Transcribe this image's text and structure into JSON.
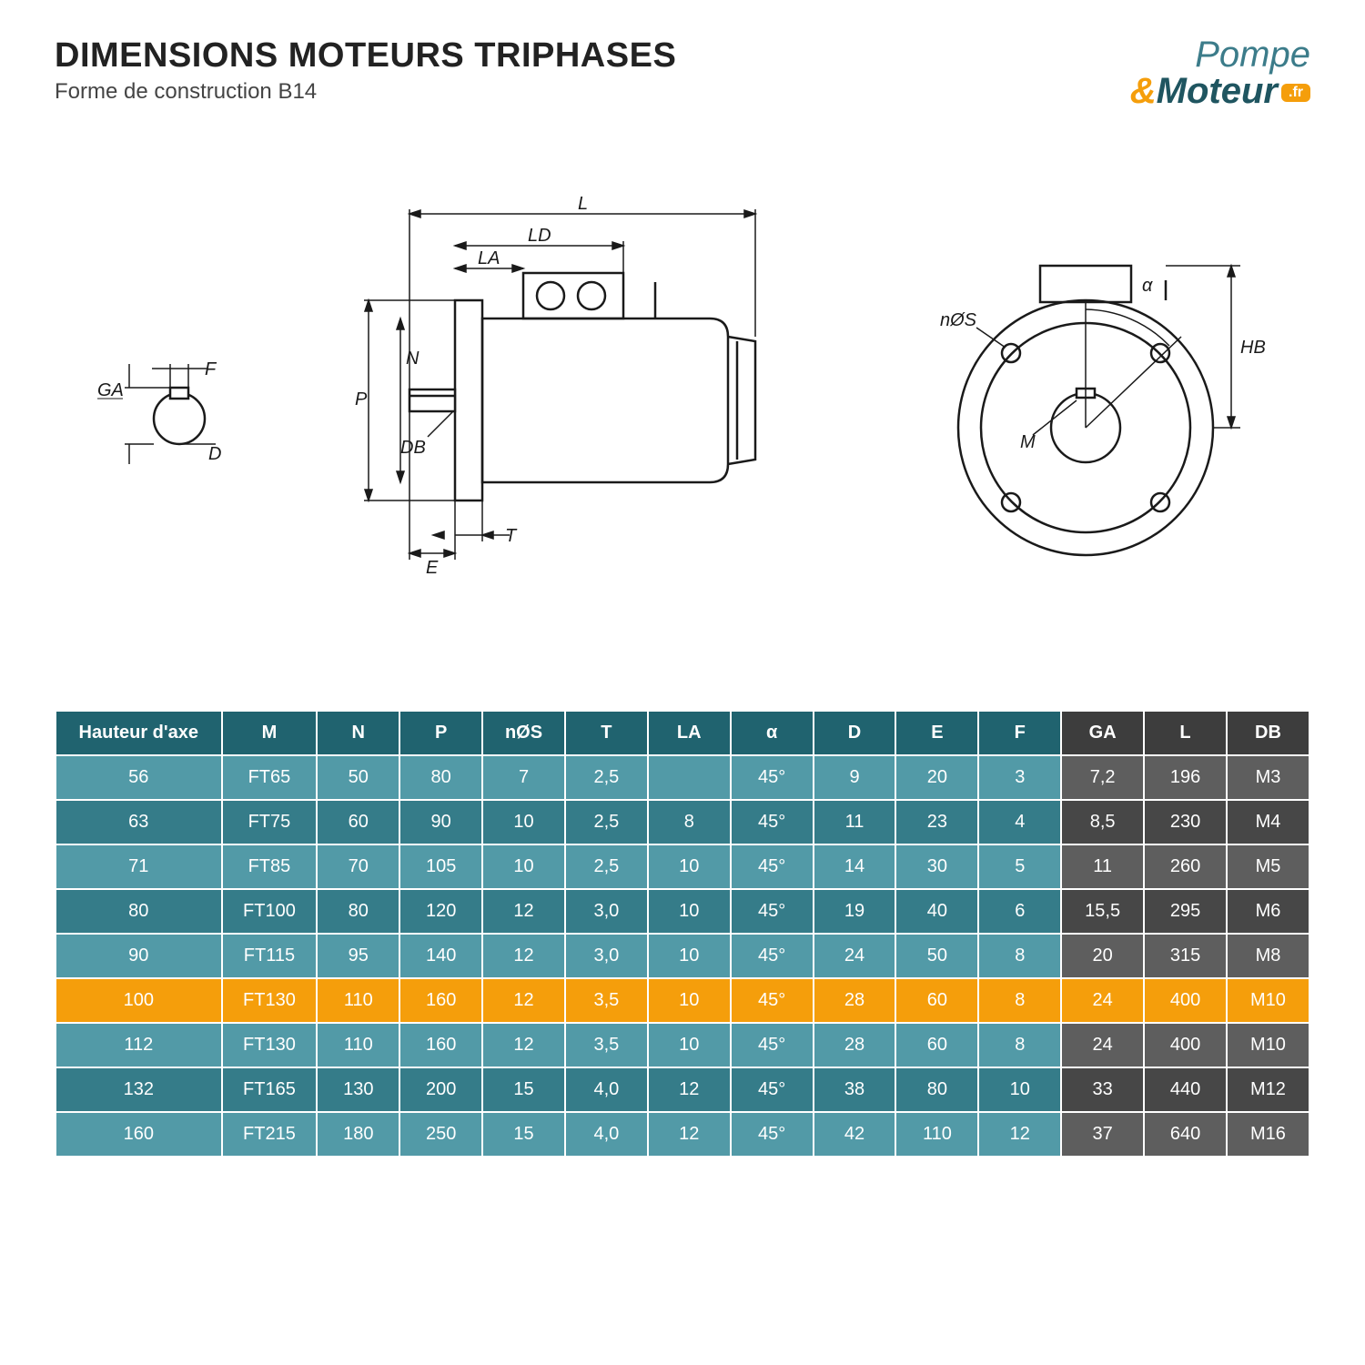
{
  "header": {
    "title": "DIMENSIONS MOTEURS TRIPHASES",
    "subtitle": "Forme de construction B14",
    "logo_line1": "Pompe",
    "logo_amp": "&",
    "logo_line2": "Moteur",
    "logo_badge": ".fr"
  },
  "diagram_labels": {
    "shaft": {
      "GA": "GA",
      "F": "F",
      "D": "D"
    },
    "side": {
      "L": "L",
      "LD": "LD",
      "LA": "LA",
      "P": "P",
      "N": "N",
      "DB": "DB",
      "E": "E",
      "T": "T"
    },
    "front": {
      "alpha": "α",
      "nS": "nØS",
      "M": "M",
      "HB": "HB"
    }
  },
  "table": {
    "columns": [
      {
        "key": "haut",
        "label": "Hauteur d'axe",
        "group": "teal"
      },
      {
        "key": "M",
        "label": "M",
        "group": "teal"
      },
      {
        "key": "N",
        "label": "N",
        "group": "teal"
      },
      {
        "key": "P",
        "label": "P",
        "group": "teal"
      },
      {
        "key": "nS",
        "label": "nØS",
        "group": "teal"
      },
      {
        "key": "T",
        "label": "T",
        "group": "teal"
      },
      {
        "key": "LA",
        "label": "LA",
        "group": "teal"
      },
      {
        "key": "alpha",
        "label": "α",
        "group": "teal"
      },
      {
        "key": "D",
        "label": "D",
        "group": "teal"
      },
      {
        "key": "E",
        "label": "E",
        "group": "teal"
      },
      {
        "key": "F",
        "label": "F",
        "group": "teal"
      },
      {
        "key": "GA",
        "label": "GA",
        "group": "dark"
      },
      {
        "key": "L",
        "label": "L",
        "group": "dark"
      },
      {
        "key": "DB",
        "label": "DB",
        "group": "dark"
      }
    ],
    "highlight_index": 5,
    "rows": [
      [
        "56",
        "FT65",
        "50",
        "80",
        "7",
        "2,5",
        "",
        "45°",
        "9",
        "20",
        "3",
        "7,2",
        "196",
        "M3"
      ],
      [
        "63",
        "FT75",
        "60",
        "90",
        "10",
        "2,5",
        "8",
        "45°",
        "11",
        "23",
        "4",
        "8,5",
        "230",
        "M4"
      ],
      [
        "71",
        "FT85",
        "70",
        "105",
        "10",
        "2,5",
        "10",
        "45°",
        "14",
        "30",
        "5",
        "11",
        "260",
        "M5"
      ],
      [
        "80",
        "FT100",
        "80",
        "120",
        "12",
        "3,0",
        "10",
        "45°",
        "19",
        "40",
        "6",
        "15,5",
        "295",
        "M6"
      ],
      [
        "90",
        "FT115",
        "95",
        "140",
        "12",
        "3,0",
        "10",
        "45°",
        "24",
        "50",
        "8",
        "20",
        "315",
        "M8"
      ],
      [
        "100",
        "FT130",
        "110",
        "160",
        "12",
        "3,5",
        "10",
        "45°",
        "28",
        "60",
        "8",
        "24",
        "400",
        "M10"
      ],
      [
        "112",
        "FT130",
        "110",
        "160",
        "12",
        "3,5",
        "10",
        "45°",
        "28",
        "60",
        "8",
        "24",
        "400",
        "M10"
      ],
      [
        "132",
        "FT165",
        "130",
        "200",
        "15",
        "4,0",
        "12",
        "45°",
        "38",
        "80",
        "10",
        "33",
        "440",
        "M12"
      ],
      [
        "160",
        "FT215",
        "180",
        "250",
        "15",
        "4,0",
        "12",
        "45°",
        "42",
        "110",
        "12",
        "37",
        "640",
        "M16"
      ]
    ]
  },
  "style": {
    "colors": {
      "teal_header": "#20636f",
      "teal_row_a": "#529aa7",
      "teal_row_b": "#357c89",
      "dark_header": "#3d3d3d",
      "dark_row_a": "#5e5e5e",
      "dark_row_b": "#474747",
      "highlight": "#f59e0b",
      "text": "#ffffff",
      "diagram_stroke": "#1a1a1a",
      "background": "#ffffff"
    },
    "fontsize": {
      "title": 38,
      "subtitle": 24,
      "table": 20,
      "diagram_label": 20
    },
    "stroke_width": {
      "outline": 2.5,
      "dimline": 1.5
    }
  }
}
